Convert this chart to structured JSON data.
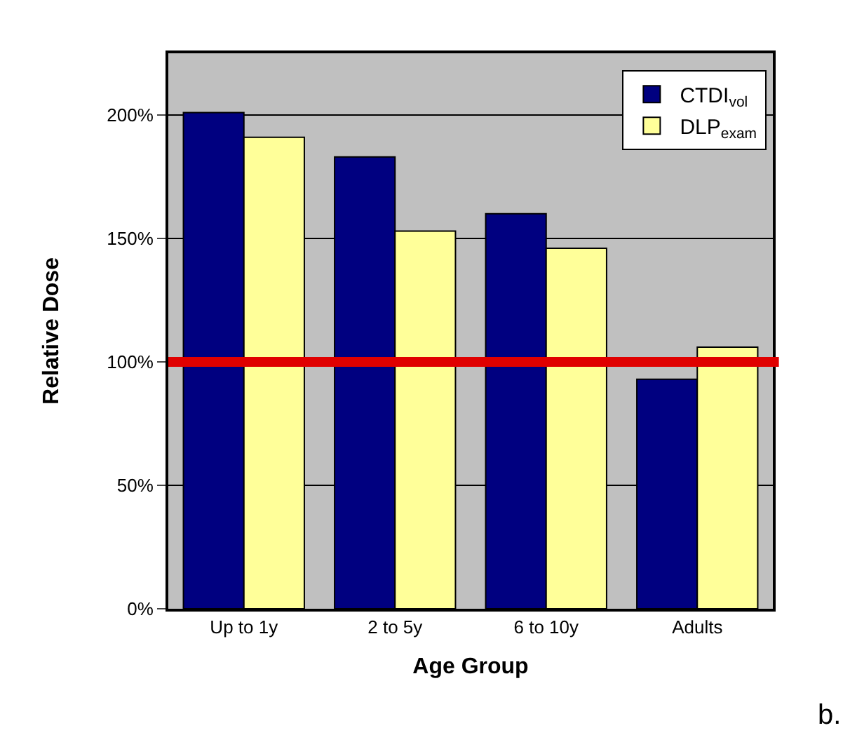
{
  "chart_data": {
    "type": "bar",
    "xlabel": "Age Group",
    "ylabel": "Relative Dose",
    "categories": [
      "Up to 1y",
      "2 to 5y",
      "6 to 10y",
      "Adults"
    ],
    "series": [
      {
        "name": "CTDI$_{vol}$",
        "color": "#000080",
        "values": [
          201,
          183,
          160,
          93
        ]
      },
      {
        "name": "DLP$_{exam}$",
        "color": "#ffff99",
        "values": [
          191,
          153,
          146,
          106
        ]
      }
    ],
    "ylim": [
      0,
      225
    ],
    "yticks": [
      {
        "value": 0,
        "label": "0%"
      },
      {
        "value": 50,
        "label": "50%"
      },
      {
        "value": 100,
        "label": "100%"
      },
      {
        "value": 150,
        "label": "150%"
      },
      {
        "value": 200,
        "label": "200%"
      }
    ],
    "grid": "y",
    "legend": "top right",
    "ref_lines": [
      {
        "axis": "y",
        "value": 100,
        "color": "#e00000"
      }
    ],
    "annotations": [
      "b."
    ]
  }
}
